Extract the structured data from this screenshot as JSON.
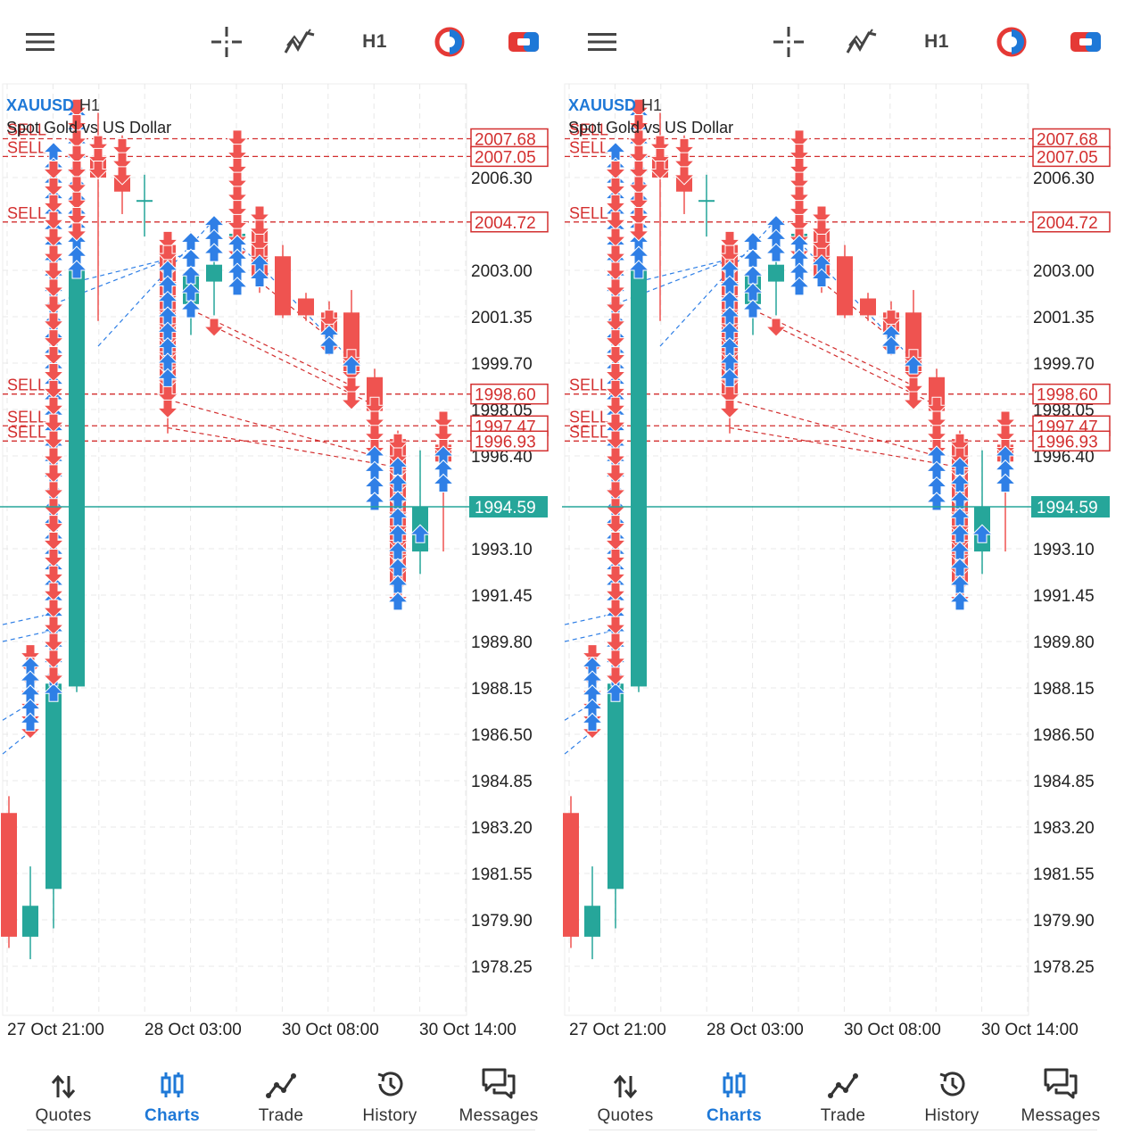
{
  "toolbar": {
    "menu_icon": "hamburger-menu-icon",
    "crosshair_icon": "crosshair-icon",
    "indicators_icon": "indicators-icon",
    "timeframe": "H1",
    "objects_icon": "color-objects-icon",
    "trade_icon": "one-click-trade-icon"
  },
  "chart": {
    "symbol": "XAUUSD",
    "timeframe": "H1",
    "description": "Spot Gold vs US Dollar",
    "current_price": "1994.59",
    "price_axis": [
      "2006.30",
      "2003.00",
      "2001.35",
      "1999.70",
      "1998.05",
      "1996.40",
      "1993.10",
      "1991.45",
      "1989.80",
      "1988.15",
      "1986.50",
      "1984.85",
      "1983.20",
      "1981.55",
      "1979.90",
      "1978.25"
    ],
    "order_lines": [
      {
        "label": "SELL",
        "price": "2007.68"
      },
      {
        "label": "SELL",
        "price": "2007.05"
      },
      {
        "label": "SELL",
        "price": "2004.72"
      },
      {
        "label": "SELL",
        "price": "1998.60"
      },
      {
        "label": "SELL",
        "price": "1997.47"
      },
      {
        "label": "SELL",
        "price": "1996.93"
      }
    ],
    "time_axis": [
      "27 Oct 21:00",
      "28 Oct 03:00",
      "30 Oct 08:00",
      "30 Oct 14:00"
    ],
    "colors": {
      "bull": "#26a69a",
      "bear": "#ef5350",
      "buy_arrow": "#2f7fe6",
      "sell_line": "#d32f2f",
      "current_line": "#26a69a"
    }
  },
  "bottom_nav": [
    {
      "label": "Quotes",
      "icon": "quotes-arrows-icon",
      "active": false
    },
    {
      "label": "Charts",
      "icon": "charts-candles-icon",
      "active": true
    },
    {
      "label": "Trade",
      "icon": "trade-line-icon",
      "active": false
    },
    {
      "label": "History",
      "icon": "history-clock-icon",
      "active": false
    },
    {
      "label": "Messages",
      "icon": "messages-bubbles-icon",
      "active": false
    }
  ]
}
